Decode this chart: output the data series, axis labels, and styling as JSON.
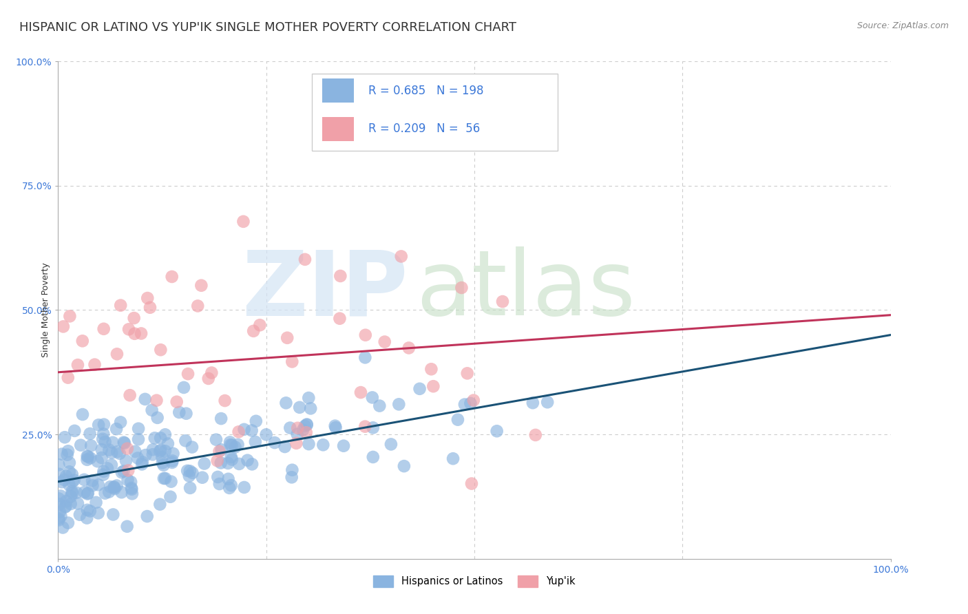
{
  "title": "HISPANIC OR LATINO VS YUP'IK SINGLE MOTHER POVERTY CORRELATION CHART",
  "source_text": "Source: ZipAtlas.com",
  "ylabel": "Single Mother Poverty",
  "xlim": [
    0.0,
    1.0
  ],
  "ylim": [
    0.0,
    1.0
  ],
  "blue_R": 0.685,
  "blue_N": 198,
  "pink_R": 0.209,
  "pink_N": 56,
  "blue_color": "#8ab4e0",
  "pink_color": "#f0a0a8",
  "blue_line_color": "#1a5276",
  "pink_line_color": "#c0335a",
  "legend_label_blue": "Hispanics or Latinos",
  "legend_label_pink": "Yup'ik",
  "title_fontsize": 13,
  "axis_label_fontsize": 9,
  "tick_fontsize": 10,
  "background_color": "#ffffff",
  "grid_color": "#cccccc",
  "blue_seed": 42,
  "pink_seed": 7,
  "blue_intercept": 0.155,
  "blue_slope": 0.295,
  "pink_intercept": 0.375,
  "pink_slope": 0.115
}
